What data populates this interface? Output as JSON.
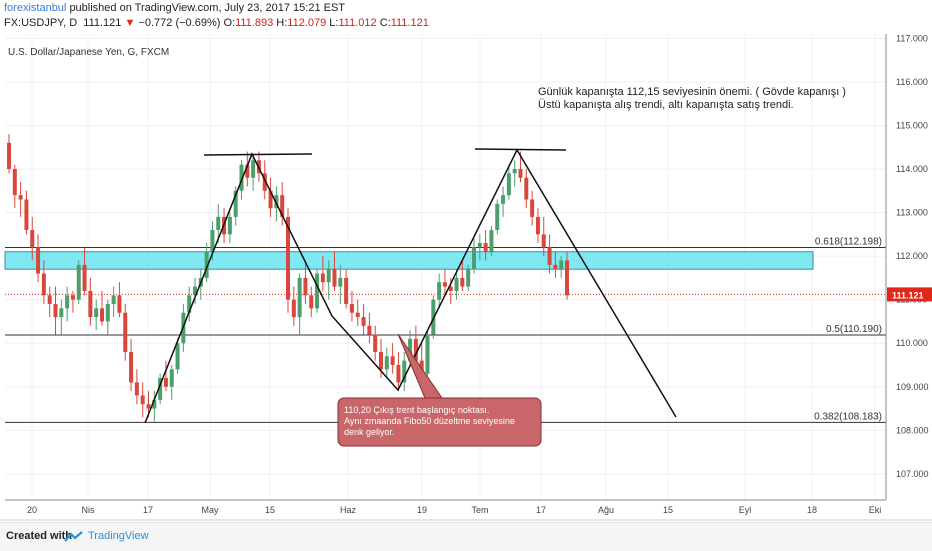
{
  "header": {
    "author": "forexistanbul",
    "published": "published on TradingView.com, July 23, 2017 15:21 EST",
    "symbol_line": "FX:USDJPY, D",
    "price": "111.121",
    "change_arrow": "▼",
    "change": "−0.772 (−0.69%)",
    "o_label": "O:",
    "o": "111.893",
    "h_label": "H:",
    "h": "112.079",
    "l_label": "L:",
    "l": "111.012",
    "c_label": "C:",
    "c": "111.121"
  },
  "footer": {
    "created": "Created with",
    "brand": "TradingView"
  },
  "chart_data": {
    "type": "candlestick",
    "title": "U.S. Dollar/Japanese Yen, G, FXCM",
    "ylim": [
      106.4,
      117.1
    ],
    "y_ticks": [
      "117.000",
      "116.000",
      "115.000",
      "114.000",
      "113.000",
      "112.000",
      "111.000",
      "110.000",
      "109.000",
      "108.000",
      "107.000"
    ],
    "x_ticks": [
      "20",
      "Nis",
      "17",
      "May",
      "15",
      "Haz",
      "19",
      "Tem",
      "17",
      "Ağu",
      "15",
      "Eyl",
      "18",
      "Eki"
    ],
    "last_price_label": "111.121",
    "last_price": 111.121,
    "colors": {
      "up": "#4c9e6d",
      "down": "#d9473c",
      "zone": "#7fe8f3",
      "price_line": "#e0271c",
      "callout": "#c9666a"
    },
    "zone": {
      "from": 111.7,
      "to": 112.1
    },
    "fib_levels": [
      {
        "label": "0.618(112.198)",
        "value": 112.198
      },
      {
        "label": "0.5(110.190)",
        "value": 110.19
      },
      {
        "label": "0.382(108.183)",
        "value": 108.183
      }
    ],
    "note_lines": [
      "Günlük kapanışta  112,15 seviyesinin  önemi.  ( Gövde  kapanışı )",
      "Üstü  kapanışta   alış trendi, altı kapanışta satış  trendi."
    ],
    "callout_lines": [
      "110,20 Çıkış trent başlangıç noktası.",
      "Aynı zmaanda  Fibo50 düzeltme seviyesine",
      "denk geliyor."
    ],
    "candles": [
      [
        114.6,
        114.8,
        113.9,
        114.0
      ],
      [
        114.0,
        114.1,
        113.1,
        113.4
      ],
      [
        113.4,
        113.7,
        112.9,
        113.3
      ],
      [
        113.3,
        113.5,
        112.5,
        112.6
      ],
      [
        112.6,
        112.9,
        111.9,
        112.2
      ],
      [
        112.2,
        112.5,
        111.4,
        111.6
      ],
      [
        111.6,
        111.9,
        110.9,
        111.1
      ],
      [
        111.1,
        111.3,
        110.6,
        110.9
      ],
      [
        110.9,
        111.3,
        110.2,
        110.6
      ],
      [
        110.6,
        111.0,
        110.2,
        110.8
      ],
      [
        110.8,
        111.3,
        110.5,
        111.1
      ],
      [
        111.1,
        111.2,
        110.7,
        111.0
      ],
      [
        111.0,
        111.9,
        110.9,
        111.8
      ],
      [
        111.8,
        112.2,
        111.1,
        111.2
      ],
      [
        111.2,
        111.5,
        110.4,
        110.6
      ],
      [
        110.6,
        111.0,
        110.3,
        110.8
      ],
      [
        110.8,
        111.2,
        110.4,
        110.5
      ],
      [
        110.5,
        111.0,
        110.2,
        110.9
      ],
      [
        110.9,
        111.3,
        110.6,
        111.1
      ],
      [
        111.1,
        111.4,
        110.6,
        110.7
      ],
      [
        110.7,
        110.9,
        109.6,
        109.8
      ],
      [
        109.8,
        110.1,
        108.9,
        109.1
      ],
      [
        109.1,
        109.4,
        108.6,
        108.8
      ],
      [
        108.8,
        109.1,
        108.3,
        108.6
      ],
      [
        108.6,
        108.9,
        108.3,
        108.5
      ],
      [
        108.5,
        108.9,
        108.2,
        108.7
      ],
      [
        108.7,
        109.3,
        108.6,
        109.2
      ],
      [
        109.2,
        109.6,
        108.9,
        109.0
      ],
      [
        109.0,
        109.5,
        108.7,
        109.4
      ],
      [
        109.4,
        110.1,
        109.3,
        110.0
      ],
      [
        110.0,
        110.9,
        109.8,
        110.7
      ],
      [
        110.7,
        111.3,
        110.5,
        111.1
      ],
      [
        111.1,
        111.5,
        110.9,
        111.3
      ],
      [
        111.3,
        111.7,
        111.0,
        111.5
      ],
      [
        111.5,
        112.3,
        111.4,
        112.1
      ],
      [
        112.1,
        112.8,
        111.9,
        112.6
      ],
      [
        112.6,
        113.2,
        112.3,
        112.9
      ],
      [
        112.9,
        113.1,
        112.3,
        112.5
      ],
      [
        112.5,
        113.0,
        112.3,
        112.9
      ],
      [
        112.9,
        113.6,
        112.7,
        113.5
      ],
      [
        113.5,
        114.2,
        113.3,
        114.1
      ],
      [
        114.1,
        114.4,
        113.6,
        113.8
      ],
      [
        113.8,
        114.3,
        113.5,
        114.2
      ],
      [
        114.2,
        114.4,
        113.7,
        113.9
      ],
      [
        113.9,
        114.2,
        113.3,
        113.5
      ],
      [
        113.5,
        113.8,
        112.9,
        113.1
      ],
      [
        113.1,
        113.6,
        112.8,
        113.4
      ],
      [
        113.4,
        113.7,
        112.7,
        112.9
      ],
      [
        112.9,
        113.1,
        110.7,
        111.0
      ],
      [
        111.0,
        111.3,
        110.4,
        110.6
      ],
      [
        110.6,
        111.6,
        110.2,
        111.5
      ],
      [
        111.5,
        111.9,
        110.9,
        111.1
      ],
      [
        111.1,
        111.3,
        110.6,
        110.8
      ],
      [
        110.8,
        111.7,
        110.7,
        111.6
      ],
      [
        111.6,
        112.0,
        111.2,
        111.4
      ],
      [
        111.4,
        111.9,
        111.0,
        111.7
      ],
      [
        111.7,
        112.1,
        111.2,
        111.3
      ],
      [
        111.3,
        111.8,
        110.9,
        111.5
      ],
      [
        111.5,
        111.7,
        110.8,
        110.9
      ],
      [
        110.9,
        111.2,
        110.5,
        110.7
      ],
      [
        110.7,
        111.0,
        110.4,
        110.6
      ],
      [
        110.6,
        110.9,
        110.2,
        110.4
      ],
      [
        110.4,
        110.7,
        110.0,
        110.2
      ],
      [
        110.2,
        110.4,
        109.6,
        109.8
      ],
      [
        109.8,
        110.1,
        109.2,
        109.4
      ],
      [
        109.4,
        109.9,
        109.2,
        109.7
      ],
      [
        109.7,
        110.0,
        109.3,
        109.5
      ],
      [
        109.5,
        109.8,
        108.9,
        109.1
      ],
      [
        109.1,
        109.8,
        108.9,
        109.6
      ],
      [
        109.6,
        110.3,
        109.5,
        110.1
      ],
      [
        110.1,
        110.4,
        109.4,
        109.6
      ],
      [
        109.6,
        110.0,
        109.1,
        109.3
      ],
      [
        109.3,
        110.3,
        109.2,
        110.2
      ],
      [
        110.2,
        111.1,
        110.1,
        111.0
      ],
      [
        111.0,
        111.6,
        110.8,
        111.4
      ],
      [
        111.4,
        111.7,
        111.1,
        111.3
      ],
      [
        111.3,
        111.5,
        110.9,
        111.2
      ],
      [
        111.2,
        111.7,
        111.0,
        111.5
      ],
      [
        111.5,
        111.9,
        111.2,
        111.3
      ],
      [
        111.3,
        111.8,
        111.2,
        111.7
      ],
      [
        111.7,
        112.4,
        111.6,
        112.2
      ],
      [
        112.2,
        112.5,
        111.9,
        112.3
      ],
      [
        112.3,
        112.6,
        111.9,
        112.1
      ],
      [
        112.1,
        112.7,
        112.0,
        112.6
      ],
      [
        112.6,
        113.3,
        112.5,
        113.2
      ],
      [
        113.2,
        113.6,
        112.9,
        113.4
      ],
      [
        113.4,
        114.1,
        113.3,
        113.9
      ],
      [
        113.9,
        114.2,
        113.6,
        114.0
      ],
      [
        114.0,
        114.4,
        113.7,
        113.8
      ],
      [
        113.8,
        114.0,
        113.1,
        113.3
      ],
      [
        113.3,
        113.5,
        112.7,
        112.9
      ],
      [
        112.9,
        113.1,
        112.3,
        112.5
      ],
      [
        112.5,
        112.9,
        112.0,
        112.2
      ],
      [
        112.2,
        112.5,
        111.6,
        111.8
      ],
      [
        111.8,
        112.1,
        111.5,
        111.7
      ],
      [
        111.7,
        112.0,
        111.5,
        111.9
      ],
      [
        111.9,
        112.1,
        111.0,
        111.1
      ]
    ]
  }
}
